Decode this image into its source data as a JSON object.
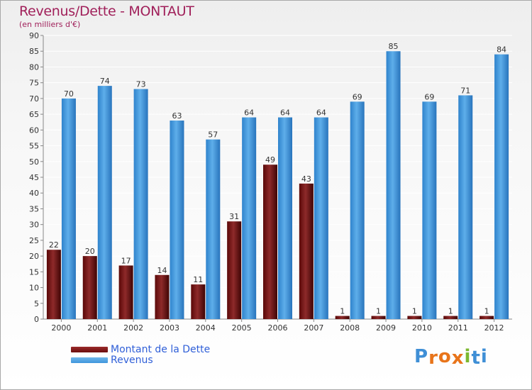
{
  "title": "Revenus/Dette - MONTAUT",
  "subtitle": "(en milliers d'€)",
  "colors": {
    "debt": "#7a1a1a",
    "revenue": "#3f96dc",
    "title": "#a0205a",
    "legend_text": "#2f5fd8",
    "grid": "#ffffff"
  },
  "legend": [
    {
      "label": "Montant de la Dette",
      "color": "#6b0d0d"
    },
    {
      "label": "Revenus",
      "color": "#3f96dc"
    }
  ],
  "brand": {
    "letters": [
      "P",
      "r",
      "o",
      "x",
      "i",
      "t",
      "i"
    ],
    "colors": [
      "#3f8fd6",
      "#e8741a",
      "#e8741a",
      "#e8741a",
      "#7cb82f",
      "#3f8fd6",
      "#3f8fd6"
    ]
  },
  "chart_data": {
    "type": "bar",
    "categories": [
      "2000",
      "2001",
      "2002",
      "2003",
      "2004",
      "2005",
      "2006",
      "2007",
      "2008",
      "2009",
      "2010",
      "2011",
      "2012"
    ],
    "series": [
      {
        "name": "Montant de la Dette",
        "values": [
          22,
          20,
          17,
          14,
          11,
          31,
          49,
          43,
          1,
          1,
          1,
          1,
          1
        ]
      },
      {
        "name": "Revenus",
        "values": [
          70,
          74,
          73,
          63,
          57,
          64,
          64,
          64,
          69,
          85,
          69,
          71,
          84
        ]
      }
    ],
    "ylim": [
      0,
      90
    ],
    "ytick_step": 5,
    "grid": true,
    "legend_position": "bottom-left"
  }
}
